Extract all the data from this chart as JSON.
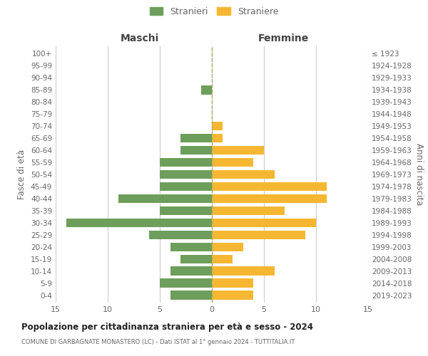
{
  "age_groups": [
    "0-4",
    "5-9",
    "10-14",
    "15-19",
    "20-24",
    "25-29",
    "30-34",
    "35-39",
    "40-44",
    "45-49",
    "50-54",
    "55-59",
    "60-64",
    "65-69",
    "70-74",
    "75-79",
    "80-84",
    "85-89",
    "90-94",
    "95-99",
    "100+"
  ],
  "birth_years": [
    "2019-2023",
    "2014-2018",
    "2009-2013",
    "2004-2008",
    "1999-2003",
    "1994-1998",
    "1989-1993",
    "1984-1988",
    "1979-1983",
    "1974-1978",
    "1969-1973",
    "1964-1968",
    "1959-1963",
    "1954-1958",
    "1949-1953",
    "1944-1948",
    "1939-1943",
    "1934-1938",
    "1929-1933",
    "1924-1928",
    "≤ 1923"
  ],
  "males": [
    4,
    5,
    4,
    3,
    4,
    6,
    14,
    5,
    9,
    5,
    5,
    5,
    3,
    3,
    0,
    0,
    0,
    1,
    0,
    0,
    0
  ],
  "females": [
    4,
    4,
    6,
    2,
    3,
    9,
    10,
    7,
    11,
    11,
    6,
    4,
    5,
    1,
    1,
    0,
    0,
    0,
    0,
    0,
    0
  ],
  "male_color": "#6d9e5b",
  "female_color": "#f5b731",
  "male_label": "Stranieri",
  "female_label": "Straniere",
  "xlabel_left": "Maschi",
  "xlabel_right": "Femmine",
  "ylabel_left": "Fasce di età",
  "ylabel_right": "Anni di nascita",
  "title_main": "Popolazione per cittadinanza straniera per età e sesso - 2024",
  "title_sub": "COMUNE DI GARBAGNATE MONASTERO (LC) - Dati ISTAT al 1° gennaio 2024 - TUTTITALIA.IT",
  "xlim": 15,
  "background_color": "#ffffff",
  "grid_color": "#cccccc",
  "label_color": "#666666"
}
